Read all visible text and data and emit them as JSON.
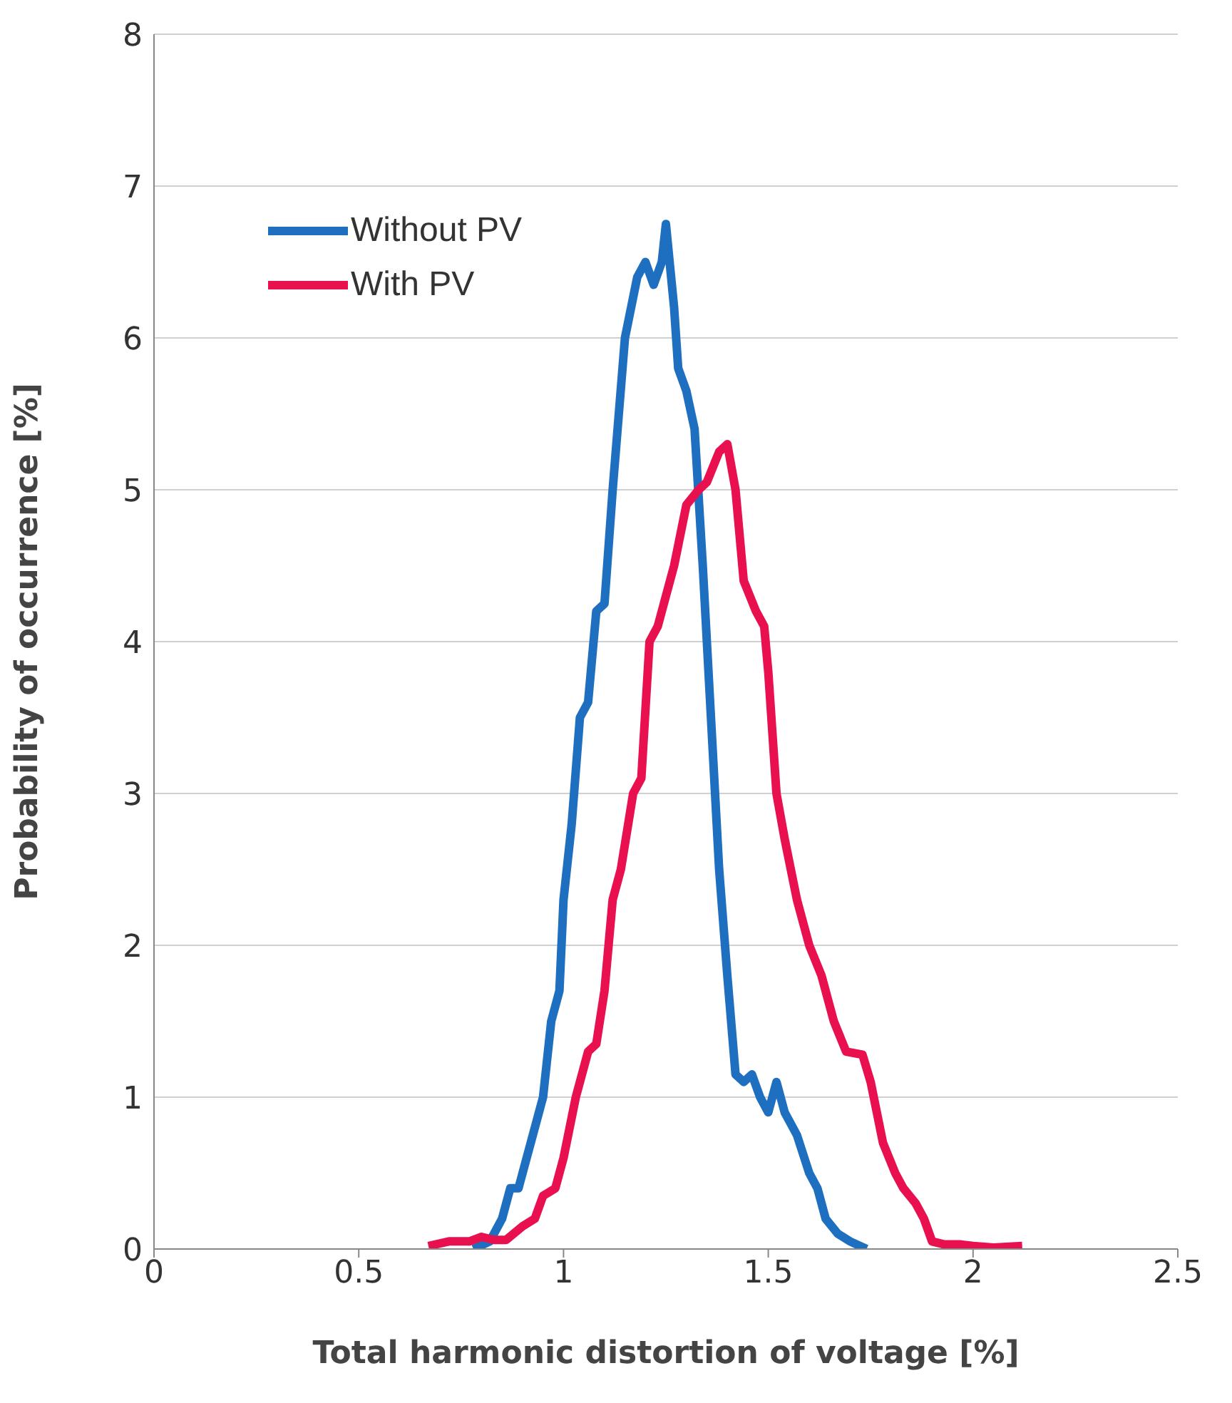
{
  "chart_data": {
    "type": "line",
    "xlabel": "Total harmonic distortion of voltage [%]",
    "ylabel": "Probability of occurrence [%]",
    "xlim": [
      0,
      2.5
    ],
    "xticks": [
      0,
      0.5,
      1,
      1.5,
      2,
      2.5
    ],
    "ylim": [
      0,
      8
    ],
    "yticks": [
      0,
      1,
      2,
      3,
      4,
      5,
      6,
      7,
      8
    ],
    "grid": "y",
    "legend": "top left",
    "marker": "none",
    "line_style": "solid",
    "series": [
      {
        "name": "Without PV",
        "color": "#1f6fc1",
        "x": [
          0.78,
          0.82,
          0.85,
          0.87,
          0.89,
          0.92,
          0.95,
          0.97,
          0.99,
          1.0,
          1.02,
          1.04,
          1.06,
          1.08,
          1.1,
          1.12,
          1.15,
          1.18,
          1.2,
          1.22,
          1.24,
          1.25,
          1.27,
          1.28,
          1.3,
          1.32,
          1.34,
          1.36,
          1.38,
          1.4,
          1.42,
          1.44,
          1.46,
          1.48,
          1.5,
          1.52,
          1.54,
          1.57,
          1.6,
          1.62,
          1.64,
          1.67,
          1.7,
          1.74
        ],
        "values": [
          0,
          0.05,
          0.2,
          0.4,
          0.4,
          0.7,
          1.0,
          1.5,
          1.7,
          2.3,
          2.8,
          3.5,
          3.6,
          4.2,
          4.25,
          5.0,
          6.0,
          6.4,
          6.5,
          6.35,
          6.5,
          6.75,
          6.2,
          5.8,
          5.65,
          5.4,
          4.5,
          3.5,
          2.5,
          1.8,
          1.15,
          1.1,
          1.15,
          1.0,
          0.9,
          1.1,
          0.9,
          0.75,
          0.5,
          0.4,
          0.2,
          0.1,
          0.05,
          0
        ]
      },
      {
        "name": "With PV",
        "color": "#e8104f",
        "x": [
          0.67,
          0.72,
          0.77,
          0.8,
          0.83,
          0.86,
          0.9,
          0.93,
          0.95,
          0.98,
          1.0,
          1.03,
          1.06,
          1.08,
          1.1,
          1.12,
          1.14,
          1.17,
          1.19,
          1.21,
          1.23,
          1.27,
          1.3,
          1.33,
          1.35,
          1.38,
          1.4,
          1.42,
          1.44,
          1.47,
          1.49,
          1.5,
          1.52,
          1.54,
          1.57,
          1.6,
          1.63,
          1.66,
          1.69,
          1.73,
          1.75,
          1.78,
          1.81,
          1.83,
          1.86,
          1.88,
          1.9,
          1.93,
          1.97,
          2.0,
          2.05,
          2.12
        ],
        "values": [
          0.02,
          0.05,
          0.05,
          0.08,
          0.06,
          0.06,
          0.15,
          0.2,
          0.35,
          0.4,
          0.6,
          1.0,
          1.3,
          1.35,
          1.7,
          2.3,
          2.5,
          3.0,
          3.1,
          4.0,
          4.1,
          4.5,
          4.9,
          5.0,
          5.05,
          5.25,
          5.3,
          5.0,
          4.4,
          4.2,
          4.1,
          3.8,
          3.0,
          2.7,
          2.3,
          2.0,
          1.8,
          1.5,
          1.3,
          1.28,
          1.1,
          0.7,
          0.5,
          0.4,
          0.3,
          0.2,
          0.05,
          0.03,
          0.03,
          0.02,
          0.01,
          0.02
        ]
      }
    ]
  }
}
